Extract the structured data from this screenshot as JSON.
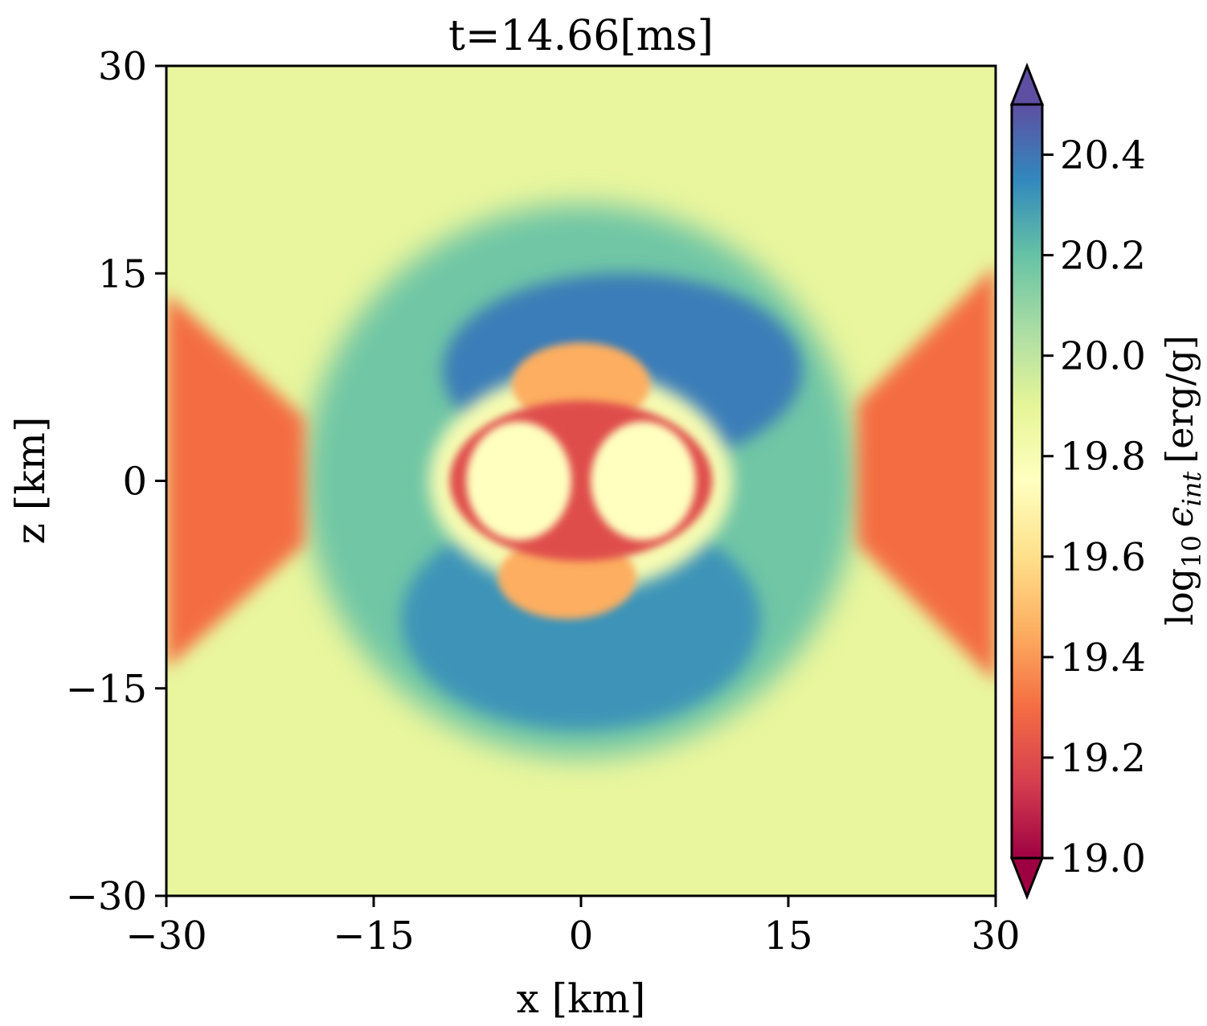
{
  "chart_data": {
    "type": "heatmap",
    "title": "t=14.66[ms]",
    "xlabel": "x [km]",
    "ylabel": "z [km]",
    "xlim": [
      -30,
      30
    ],
    "ylim": [
      -30,
      30
    ],
    "x_ticks": [
      -30,
      -15,
      0,
      15,
      30
    ],
    "y_ticks": [
      -30,
      -15,
      0,
      15,
      30
    ],
    "x_tick_labels": [
      "−30",
      "−15",
      "0",
      "15",
      "30"
    ],
    "y_tick_labels": [
      "−30",
      "−15",
      "0",
      "15",
      "30"
    ],
    "colorbar": {
      "label": "log10 ϵint [erg/g]",
      "label_parts": {
        "base": "log",
        "sub_base": "10",
        "symbol": "ϵ",
        "sub_symbol": "int",
        "unit": "[erg/g]"
      },
      "vmin": 19.0,
      "vmax": 20.5,
      "extend": "both",
      "colormap": "Spectral",
      "ticks": [
        19.0,
        19.2,
        19.4,
        19.6,
        19.8,
        20.0,
        20.2,
        20.4
      ],
      "tick_labels": [
        "19.0",
        "19.2",
        "19.4",
        "19.6",
        "19.8",
        "20.0",
        "20.2",
        "20.4"
      ]
    },
    "field_regions": [
      {
        "region": "background",
        "value": 19.88
      },
      {
        "region": "outer-shell-upper",
        "center": [
          3,
          8
        ],
        "semi_axes": [
          13,
          7
        ],
        "value": 20.38
      },
      {
        "region": "outer-shell-lower",
        "center": [
          0,
          -10
        ],
        "semi_axes": [
          13,
          8
        ],
        "value": 20.32
      },
      {
        "region": "shell-broad",
        "center": [
          0,
          0
        ],
        "semi_axes": [
          20,
          20
        ],
        "value": 20.18
      },
      {
        "region": "inner-turbulent",
        "center": [
          0,
          0
        ],
        "semi_axes": [
          11,
          8
        ],
        "value": 19.8
      },
      {
        "region": "core-rim",
        "center": [
          0,
          0
        ],
        "semi_axes": [
          9.5,
          5.8
        ],
        "value": 19.2
      },
      {
        "region": "core-lobe-left",
        "center": [
          -4.5,
          0
        ],
        "semi_axes": [
          3.8,
          4.3
        ],
        "value": 19.75
      },
      {
        "region": "core-lobe-right",
        "center": [
          4.5,
          0
        ],
        "semi_axes": [
          3.8,
          4.3
        ],
        "value": 19.75
      },
      {
        "region": "outflow-left",
        "x_range": [
          -30,
          -20
        ],
        "z_range": [
          -13,
          13
        ],
        "value": 19.3
      },
      {
        "region": "outflow-right",
        "x_range": [
          20,
          30
        ],
        "z_range": [
          -14,
          15
        ],
        "value": 19.3
      },
      {
        "region": "plume-upper",
        "center": [
          0,
          7
        ],
        "semi_axes": [
          5,
          3
        ],
        "value": 19.45
      },
      {
        "region": "plume-lower",
        "center": [
          -1,
          -7
        ],
        "semi_axes": [
          5,
          3
        ],
        "value": 19.45
      }
    ]
  }
}
